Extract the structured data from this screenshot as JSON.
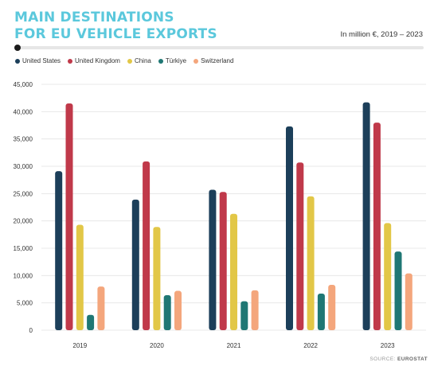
{
  "title_line1": "MAIN DESTINATIONS",
  "title_line2": "FOR EU VEHICLE EXPORTS",
  "subtitle": "In million €, 2019 – 2023",
  "source_label": "SOURCE:",
  "source_name": "EUROSTAT",
  "chart_data": {
    "type": "bar",
    "title": "MAIN DESTINATIONS FOR EU VEHICLE EXPORTS",
    "subtitle": "In million €, 2019 – 2023",
    "categories": [
      "2019",
      "2020",
      "2021",
      "2022",
      "2023"
    ],
    "series": [
      {
        "name": "United States",
        "color": "#1c3f5a",
        "values": [
          29100,
          23900,
          25700,
          37300,
          41700
        ]
      },
      {
        "name": "United Kingdom",
        "color": "#c0394a",
        "values": [
          41500,
          30900,
          25300,
          30700,
          38000
        ]
      },
      {
        "name": "China",
        "color": "#e2c747",
        "values": [
          19300,
          18900,
          21300,
          24500,
          19600
        ]
      },
      {
        "name": "Türkiye",
        "color": "#1f7774",
        "values": [
          2800,
          6400,
          5300,
          6700,
          14400
        ]
      },
      {
        "name": "Switzerland",
        "color": "#f4a67c",
        "values": [
          8000,
          7200,
          7300,
          8300,
          10400
        ]
      }
    ],
    "ylim": [
      0,
      45000
    ],
    "yticks": [
      "0",
      "5,000",
      "10,000",
      "15,000",
      "20,000",
      "25,000",
      "30,000",
      "35,000",
      "40,000",
      "45,000"
    ],
    "ytick_values": [
      0,
      5000,
      10000,
      15000,
      20000,
      25000,
      30000,
      35000,
      40000,
      45000
    ],
    "grid": true,
    "legend_position": "top-left"
  }
}
